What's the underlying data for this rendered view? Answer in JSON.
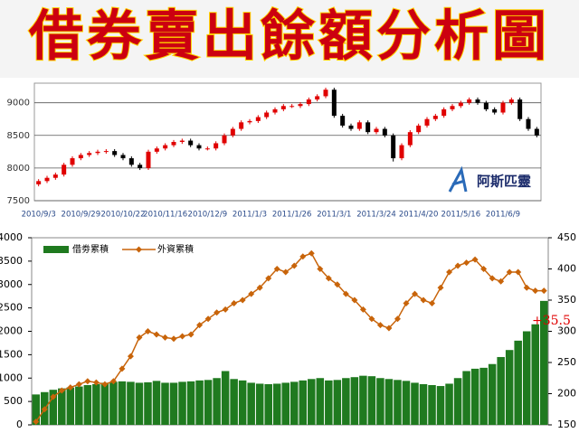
{
  "chart_data": [
    {
      "type": "candlestick",
      "title": "借券賣出餘額分析圖",
      "watermark": "阿斯匹靈",
      "categories": [
        "2010/9/3",
        null,
        null,
        null,
        null,
        "2010/9/29",
        null,
        null,
        null,
        null,
        "2010/10/22",
        null,
        null,
        null,
        null,
        "2010/11/16",
        null,
        null,
        null,
        null,
        "2010/12/9",
        null,
        null,
        null,
        null,
        "2011/1/3",
        null,
        null,
        null,
        null,
        "2011/1/26",
        null,
        null,
        null,
        null,
        "2011/3/1",
        null,
        null,
        null,
        null,
        "2011/3/24",
        null,
        null,
        null,
        null,
        "2011/4/20",
        null,
        null,
        null,
        null,
        "2011/5/16",
        null,
        null,
        null,
        null,
        "2011/6/9",
        null,
        null,
        null,
        null
      ],
      "open": [
        7750,
        7800,
        7850,
        7900,
        8050,
        8150,
        8200,
        8230,
        8250,
        8260,
        8200,
        8150,
        8050,
        8000,
        8250,
        8300,
        8350,
        8400,
        8420,
        8350,
        8300,
        8300,
        8380,
        8500,
        8600,
        8700,
        8720,
        8780,
        8850,
        8900,
        8950,
        8950,
        8980,
        9050,
        9100,
        9200,
        8800,
        8650,
        8600,
        8700,
        8550,
        8600,
        8500,
        8150,
        8350,
        8550,
        8650,
        8750,
        8800,
        8900,
        8950,
        9000,
        9050,
        9000,
        8900,
        8850,
        9000,
        9050,
        8750,
        8600
      ],
      "high": [
        7830,
        7880,
        7930,
        8080,
        8180,
        8230,
        8260,
        8280,
        8290,
        8290,
        8230,
        8180,
        8080,
        8280,
        8330,
        8380,
        8430,
        8450,
        8450,
        8380,
        8330,
        8410,
        8530,
        8630,
        8730,
        8750,
        8810,
        8880,
        8930,
        8980,
        8980,
        9010,
        9080,
        9130,
        9230,
        9230,
        8830,
        8680,
        8730,
        8730,
        8630,
        8630,
        8530,
        8380,
        8580,
        8680,
        8780,
        8830,
        8930,
        8980,
        9030,
        9080,
        9080,
        9030,
        8930,
        9030,
        9080,
        9080,
        8780,
        8630
      ],
      "low": [
        7720,
        7770,
        7820,
        7870,
        8020,
        8120,
        8170,
        8200,
        8220,
        8170,
        8120,
        8020,
        7970,
        7970,
        8220,
        8270,
        8320,
        8370,
        8320,
        8270,
        8270,
        8270,
        8350,
        8470,
        8570,
        8670,
        8690,
        8750,
        8820,
        8870,
        8920,
        8920,
        8950,
        9020,
        9070,
        8770,
        8620,
        8570,
        8570,
        8520,
        8520,
        8470,
        8100,
        8120,
        8320,
        8520,
        8620,
        8720,
        8770,
        8870,
        8920,
        8970,
        8970,
        8870,
        8820,
        8820,
        8970,
        8720,
        8570,
        8470
      ],
      "close": [
        7800,
        7850,
        7900,
        8050,
        8150,
        8200,
        8230,
        8250,
        8260,
        8200,
        8150,
        8050,
        8000,
        8250,
        8300,
        8350,
        8400,
        8420,
        8350,
        8300,
        8300,
        8380,
        8500,
        8600,
        8700,
        8720,
        8780,
        8850,
        8900,
        8950,
        8950,
        8980,
        9050,
        9100,
        9200,
        8800,
        8650,
        8600,
        8700,
        8550,
        8600,
        8500,
        8150,
        8350,
        8550,
        8650,
        8750,
        8800,
        8900,
        8950,
        9000,
        9050,
        9000,
        8900,
        8850,
        9000,
        9050,
        8750,
        8600,
        8500
      ],
      "ylim": [
        7500,
        9300
      ],
      "yticks": [
        7500,
        8000,
        8500,
        9000
      ],
      "grid": true,
      "up_color": "#e00000",
      "down_color": "#000000"
    },
    {
      "type": "bar-line",
      "series": [
        {
          "name": "借劵累積",
          "type": "bar",
          "color": "#1f7a1f",
          "values": [
            650,
            700,
            750,
            780,
            800,
            820,
            850,
            870,
            900,
            920,
            930,
            920,
            900,
            910,
            940,
            900,
            900,
            920,
            930,
            950,
            960,
            1000,
            1150,
            980,
            950,
            900,
            880,
            870,
            880,
            900,
            920,
            950,
            980,
            1000,
            950,
            960,
            1000,
            1020,
            1050,
            1040,
            1000,
            980,
            960,
            940,
            900,
            870,
            850,
            830,
            880,
            1000,
            1150,
            1200,
            1220,
            1300,
            1450,
            1600,
            1800,
            2000,
            2150,
            2650
          ]
        },
        {
          "name": "外資累積",
          "type": "line",
          "color": "#c8640a",
          "axis": "y2",
          "values": [
            155,
            175,
            195,
            205,
            210,
            215,
            220,
            218,
            215,
            220,
            240,
            260,
            290,
            300,
            295,
            290,
            288,
            292,
            295,
            310,
            320,
            330,
            335,
            345,
            350,
            360,
            370,
            385,
            400,
            395,
            405,
            420,
            425,
            400,
            385,
            375,
            360,
            350,
            335,
            320,
            310,
            305,
            320,
            345,
            360,
            350,
            345,
            370,
            395,
            405,
            410,
            415,
            400,
            385,
            380,
            395,
            395,
            370,
            365,
            365
          ]
        }
      ],
      "annotation": "+35.5",
      "ylim": [
        0,
        4000
      ],
      "yticks": [
        0,
        500,
        1000,
        1500,
        2000,
        2500,
        3000,
        3500,
        4000
      ],
      "y2lim": [
        150,
        450
      ],
      "y2ticks": [
        150,
        200,
        250,
        300,
        350,
        400,
        450
      ]
    }
  ]
}
